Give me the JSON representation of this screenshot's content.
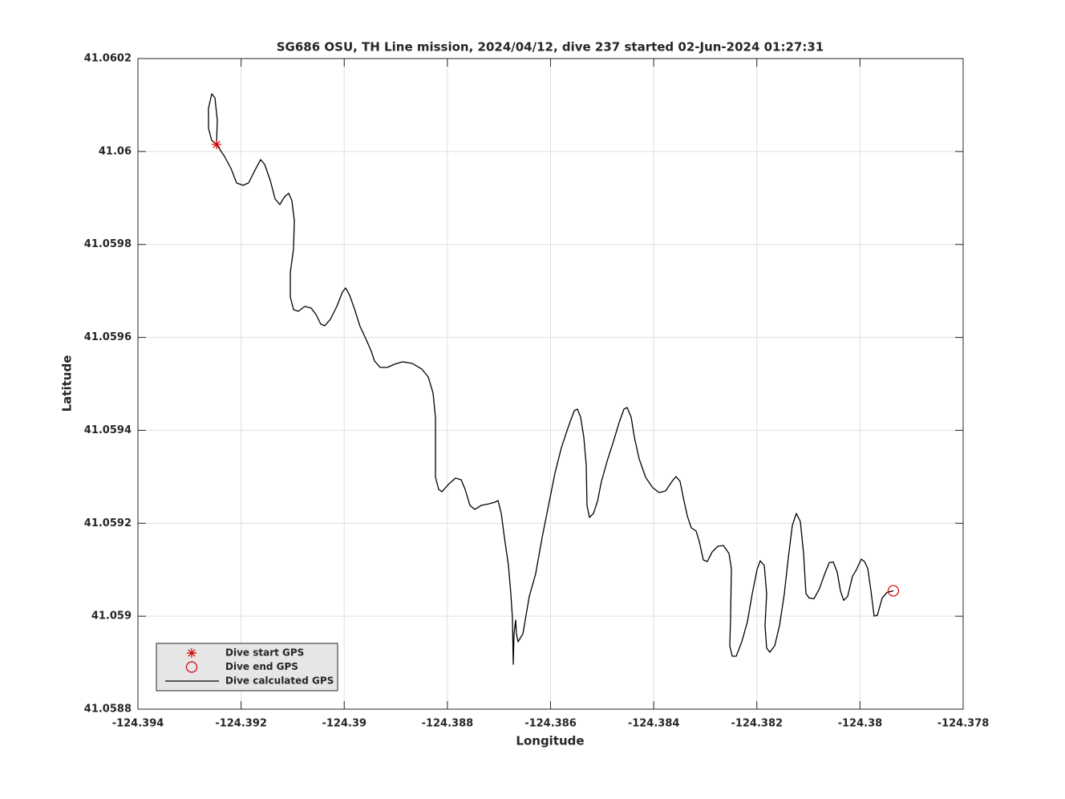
{
  "chart_data": {
    "type": "line",
    "title": "SG686 OSU, TH Line mission, 2024/04/12, dive 237 started 02-Jun-2024 01:27:31",
    "xlabel": "Longitude",
    "ylabel": "Latitude",
    "xlim": [
      -124.394,
      -124.378
    ],
    "ylim": [
      41.0588,
      41.0602
    ],
    "xticks": [
      -124.394,
      -124.392,
      -124.39,
      -124.388,
      -124.386,
      -124.384,
      -124.382,
      -124.38,
      -124.378
    ],
    "yticks": [
      41.0588,
      41.059,
      41.0592,
      41.0594,
      41.0596,
      41.0598,
      41.06,
      41.0602
    ],
    "grid": true,
    "legend_location": "southwest",
    "series": [
      {
        "name": "Dive start GPS",
        "color": "#d40000",
        "marker": "*",
        "x": [
          -124.392476
        ],
        "values": [
          41.0600153
        ]
      },
      {
        "name": "Dive end GPS",
        "color": "#d40000",
        "marker": "o",
        "x": [
          -124.379353
        ],
        "values": [
          41.0590547
        ]
      },
      {
        "name": "Dive calculated GPS",
        "color": "#000000",
        "marker": "none",
        "x": [
          -124.392476,
          -124.392461,
          -124.392507,
          -124.392569,
          -124.392632,
          -124.392632,
          -124.392569,
          -124.392476,
          -124.392321,
          -124.392196,
          -124.392087,
          -124.391963,
          -124.391854,
          -124.39173,
          -124.391621,
          -124.391543,
          -124.391434,
          -124.391341,
          -124.391248,
          -124.391154,
          -124.391077,
          -124.391015,
          -124.390968,
          -124.390983,
          -124.391046,
          -124.391046,
          -124.390983,
          -124.39089,
          -124.390766,
          -124.390641,
          -124.390548,
          -124.390455,
          -124.390377,
          -124.390268,
          -124.390144,
          -124.390035,
          -124.389973,
          -124.389895,
          -124.389802,
          -124.389693,
          -124.389569,
          -124.389475,
          -124.389413,
          -124.389304,
          -124.389164,
          -124.389024,
          -124.388869,
          -124.388682,
          -124.388496,
          -124.388371,
          -124.388278,
          -124.388231,
          -124.388231,
          -124.388231,
          -124.388169,
          -124.388107,
          -124.387967,
          -124.387843,
          -124.387734,
          -124.387656,
          -124.387563,
          -124.387469,
          -124.387345,
          -124.38719,
          -124.387081,
          -124.387018,
          -124.386956,
          -124.386894,
          -124.386816,
          -124.38677,
          -124.386739,
          -124.386723,
          -124.386708,
          -124.386676,
          -124.386661,
          -124.38663,
          -124.386536,
          -124.386412,
          -124.386288,
          -124.386163,
          -124.386039,
          -124.385915,
          -124.38579,
          -124.385666,
          -124.385541,
          -124.385479,
          -124.385417,
          -124.385355,
          -124.385308,
          -124.385293,
          -124.385246,
          -124.385168,
          -124.38509,
          -124.385013,
          -124.384904,
          -124.384779,
          -124.384671,
          -124.384577,
          -124.384515,
          -124.384437,
          -124.384375,
          -124.384282,
          -124.384157,
          -124.384018,
          -124.383893,
          -124.383769,
          -124.383644,
          -124.383567,
          -124.383489,
          -124.383427,
          -124.383349,
          -124.383271,
          -124.383178,
          -124.383116,
          -124.383038,
          -124.38296,
          -124.382867,
          -124.382758,
          -124.382649,
          -124.38254,
          -124.382494,
          -124.382509,
          -124.382525,
          -124.382478,
          -124.3824,
          -124.382292,
          -124.382183,
          -124.382089,
          -124.381996,
          -124.381934,
          -124.381856,
          -124.38181,
          -124.381841,
          -124.38181,
          -124.381747,
          -124.381654,
          -124.381561,
          -124.381467,
          -124.38139,
          -124.381312,
          -124.381234,
          -124.381157,
          -124.381094,
          -124.381048,
          -124.380986,
          -124.380892,
          -124.380783,
          -124.38069,
          -124.380597,
          -124.380519,
          -124.380441,
          -124.380379,
          -124.380317,
          -124.380239,
          -124.380146,
          -124.380068,
          -124.379975,
          -124.379913,
          -124.37985,
          -124.379788,
          -124.379726,
          -124.379664,
          -124.37957,
          -124.379477,
          -124.379353
        ],
        "values": [
          41.0600153,
          41.0600671,
          41.0601154,
          41.060124,
          41.060093,
          41.0600498,
          41.0600239,
          41.0600153,
          41.0599894,
          41.0599635,
          41.0599324,
          41.0599272,
          41.0599324,
          41.05996,
          41.0599825,
          41.0599721,
          41.0599376,
          41.0598979,
          41.0598858,
          41.0599031,
          41.05991,
          41.0598944,
          41.0598513,
          41.0597909,
          41.0597391,
          41.0596873,
          41.0596597,
          41.0596562,
          41.0596666,
          41.0596631,
          41.0596493,
          41.0596286,
          41.0596251,
          41.059639,
          41.0596666,
          41.0596976,
          41.0597063,
          41.0596907,
          41.0596614,
          41.0596234,
          41.0595941,
          41.0595699,
          41.0595492,
          41.0595354,
          41.0595354,
          41.0595423,
          41.0595475,
          41.059544,
          41.0595319,
          41.0595147,
          41.0594801,
          41.0594283,
          41.0593593,
          41.0592989,
          41.059273,
          41.0592678,
          41.0592851,
          41.0592971,
          41.0592937,
          41.059273,
          41.0592384,
          41.0592298,
          41.0592384,
          41.0592419,
          41.0592454,
          41.0592488,
          41.0592212,
          41.0591694,
          41.059109,
          41.0590486,
          41.0589968,
          41.0588966,
          41.0589622,
          41.0589916,
          41.0589622,
          41.058945,
          41.0589622,
          41.0590427,
          41.0590917,
          41.0591694,
          41.0592384,
          41.0593075,
          41.0593627,
          41.0594042,
          41.0594422,
          41.0594456,
          41.0594283,
          41.0593852,
          41.0593248,
          41.0592384,
          41.0592126,
          41.0592212,
          41.0592471,
          41.0592902,
          41.0593334,
          41.0593766,
          41.0594163,
          41.0594456,
          41.0594491,
          41.0594283,
          41.0593852,
          41.0593386,
          41.0592989,
          41.0592764,
          41.0592661,
          41.0592695,
          41.0592902,
          41.0593006,
          41.0592902,
          41.0592557,
          41.059216,
          41.0591901,
          41.0591832,
          41.0591608,
          41.0591211,
          41.0591176,
          41.0591383,
          41.0591504,
          41.0591521,
          41.0591349,
          41.0591031,
          41.0589968,
          41.0589363,
          41.0589139,
          41.0589139,
          41.058945,
          41.0589881,
          41.0590486,
          41.0591003,
          41.0591193,
          41.059109,
          41.0590486,
          41.0589795,
          41.0589312,
          41.0589225,
          41.0589363,
          41.0589795,
          41.0590486,
          41.0591262,
          41.0591953,
          41.0592212,
          41.0592039,
          41.0591349,
          41.0590486,
          41.0590392,
          41.0590375,
          41.0590599,
          41.0590893,
          41.0591152,
          41.0591169,
          41.0590944,
          41.0590547,
          41.059034,
          41.0590427,
          41.0590858,
          41.0591003,
          41.0591228,
          41.0591176,
          41.0591031,
          41.0590547,
          41.0590002,
          41.0590019,
          41.0590392,
          41.0590513,
          41.0590547
        ]
      }
    ]
  }
}
